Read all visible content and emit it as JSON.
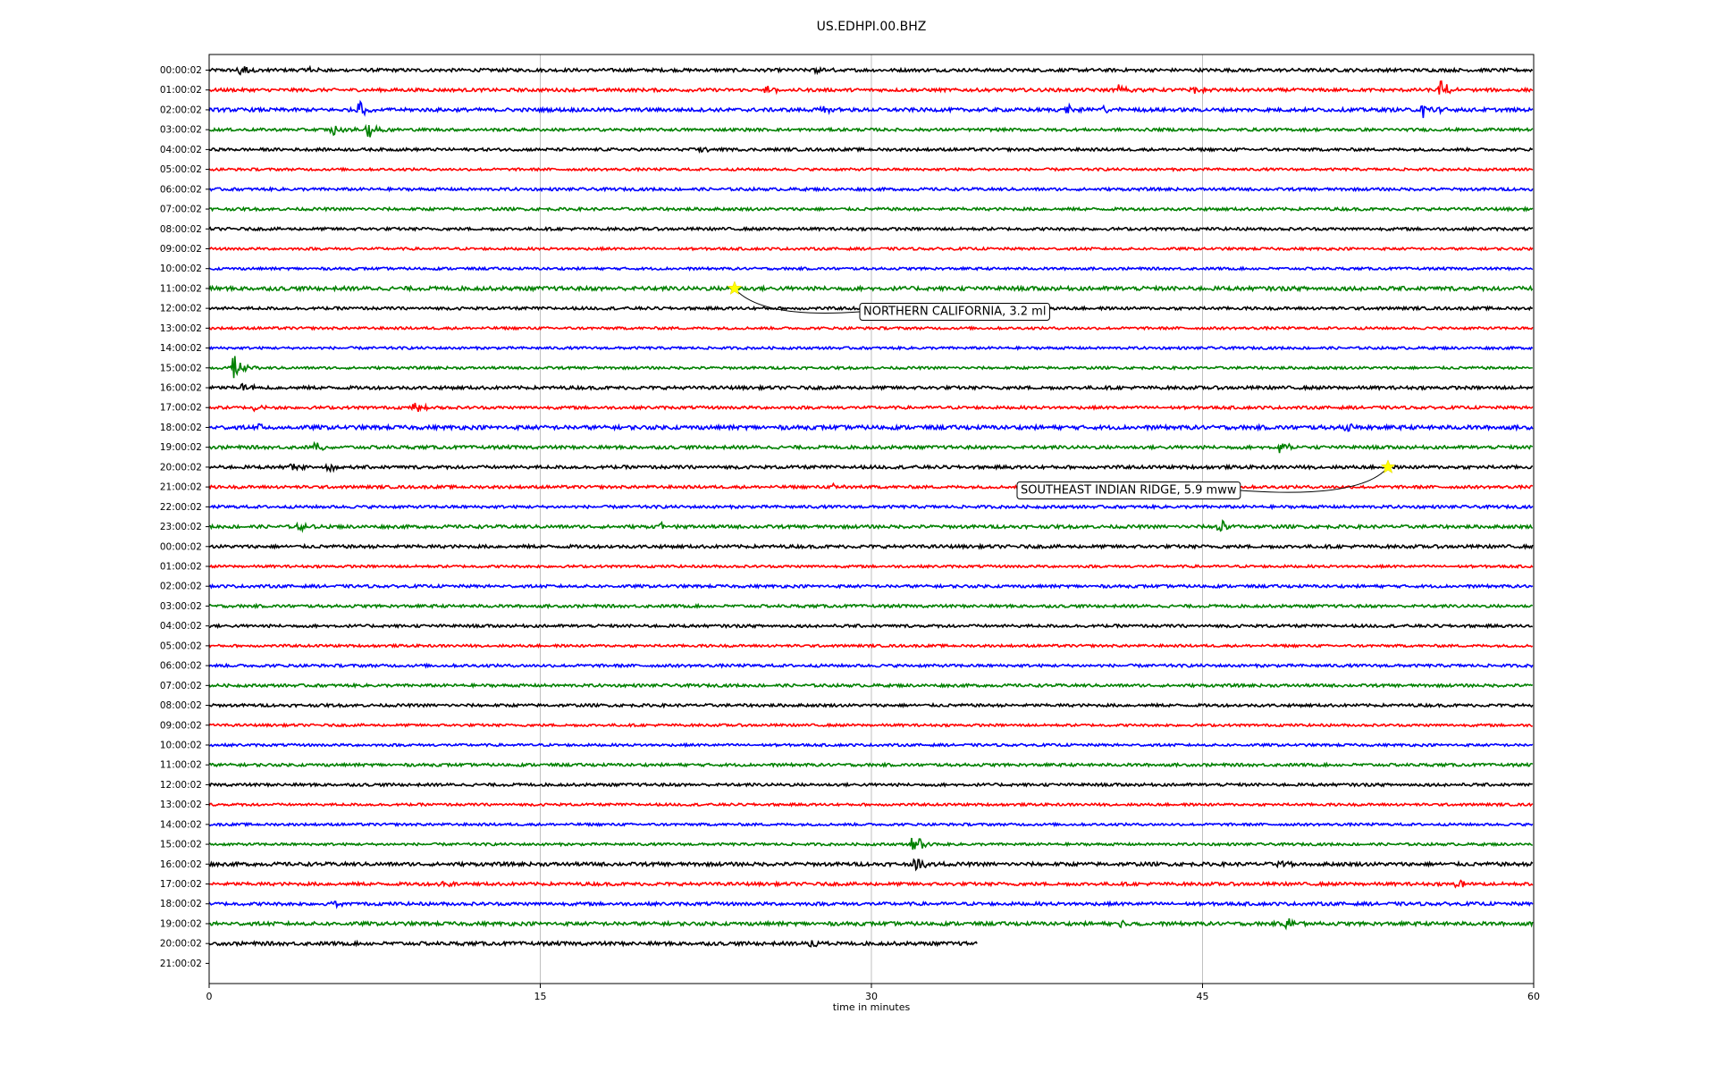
{
  "chart_data": {
    "type": "line",
    "title": "US.EDHPI.00.BHZ",
    "xlabel": "time in minutes",
    "ylabel": "",
    "xlim": [
      0,
      60
    ],
    "x_ticks": [
      "0",
      "15",
      "30",
      "45",
      "60"
    ],
    "x_tick_values": [
      0,
      15,
      30,
      45,
      60
    ],
    "grid_x": true,
    "series_colors": [
      "#000000",
      "#ff0000",
      "#0000ff",
      "#008000"
    ],
    "row_labels": [
      "00:00:02",
      "01:00:02",
      "02:00:02",
      "03:00:02",
      "04:00:02",
      "05:00:02",
      "06:00:02",
      "07:00:02",
      "08:00:02",
      "09:00:02",
      "10:00:02",
      "11:00:02",
      "12:00:02",
      "13:00:02",
      "14:00:02",
      "15:00:02",
      "16:00:02",
      "17:00:02",
      "18:00:02",
      "19:00:02",
      "20:00:02",
      "21:00:02",
      "22:00:02",
      "23:00:02",
      "00:00:02",
      "01:00:02",
      "02:00:02",
      "03:00:02",
      "04:00:02",
      "05:00:02",
      "06:00:02",
      "07:00:02",
      "08:00:02",
      "09:00:02",
      "10:00:02",
      "11:00:02",
      "12:00:02",
      "13:00:02",
      "14:00:02",
      "15:00:02",
      "16:00:02",
      "17:00:02",
      "18:00:02",
      "19:00:02",
      "20:00:02",
      "21:00:02"
    ],
    "trace_end_minutes": [
      60,
      60,
      60,
      60,
      60,
      60,
      60,
      60,
      60,
      60,
      60,
      60,
      60,
      60,
      60,
      60,
      60,
      60,
      60,
      60,
      60,
      60,
      60,
      60,
      60,
      60,
      60,
      60,
      60,
      60,
      60,
      60,
      60,
      60,
      60,
      60,
      60,
      60,
      60,
      60,
      60,
      60,
      60,
      60,
      34.8,
      0
    ],
    "noise_level": [
      0.18,
      0.18,
      0.2,
      0.16,
      0.16,
      0.14,
      0.16,
      0.16,
      0.16,
      0.14,
      0.14,
      0.22,
      0.16,
      0.14,
      0.14,
      0.14,
      0.18,
      0.16,
      0.22,
      0.18,
      0.18,
      0.16,
      0.16,
      0.18,
      0.18,
      0.14,
      0.16,
      0.16,
      0.16,
      0.14,
      0.16,
      0.16,
      0.16,
      0.14,
      0.14,
      0.16,
      0.16,
      0.14,
      0.14,
      0.14,
      0.2,
      0.18,
      0.18,
      0.2,
      0.2,
      0
    ],
    "bursts": [
      {
        "row": 0,
        "minute": 1.4,
        "amplitude": 1.0
      },
      {
        "row": 0,
        "minute": 4.5,
        "amplitude": 0.4
      },
      {
        "row": 0,
        "minute": 27.5,
        "amplitude": 0.4
      },
      {
        "row": 1,
        "minute": 25.2,
        "amplitude": 0.5
      },
      {
        "row": 1,
        "minute": 41.2,
        "amplitude": 0.8
      },
      {
        "row": 1,
        "minute": 44.5,
        "amplitude": 0.6
      },
      {
        "row": 1,
        "minute": 55.8,
        "amplitude": 1.2
      },
      {
        "row": 2,
        "minute": 6.8,
        "amplitude": 1.2
      },
      {
        "row": 2,
        "minute": 27.8,
        "amplitude": 0.5
      },
      {
        "row": 2,
        "minute": 38.8,
        "amplitude": 0.6
      },
      {
        "row": 2,
        "minute": 40.5,
        "amplitude": 0.5
      },
      {
        "row": 2,
        "minute": 55,
        "amplitude": 1.1
      },
      {
        "row": 3,
        "minute": 5.6,
        "amplitude": 0.9
      },
      {
        "row": 3,
        "minute": 7.2,
        "amplitude": 0.9
      },
      {
        "row": 4,
        "minute": 22.3,
        "amplitude": 0.4
      },
      {
        "row": 15,
        "minute": 1.1,
        "amplitude": 1.5
      },
      {
        "row": 16,
        "minute": 1.5,
        "amplitude": 0.6
      },
      {
        "row": 17,
        "minute": 9.3,
        "amplitude": 0.6
      },
      {
        "row": 17,
        "minute": 2,
        "amplitude": 0.4
      },
      {
        "row": 18,
        "minute": 2.3,
        "amplitude": 0.4
      },
      {
        "row": 18,
        "minute": 51.5,
        "amplitude": 0.5
      },
      {
        "row": 19,
        "minute": 4.8,
        "amplitude": 0.5
      },
      {
        "row": 19,
        "minute": 48.5,
        "amplitude": 0.6
      },
      {
        "row": 20,
        "minute": 5.3,
        "amplitude": 0.5
      },
      {
        "row": 20,
        "minute": 3.7,
        "amplitude": 0.4
      },
      {
        "row": 21,
        "minute": 28.3,
        "amplitude": 0.3
      },
      {
        "row": 23,
        "minute": 45.7,
        "amplitude": 1.1
      },
      {
        "row": 23,
        "minute": 20.3,
        "amplitude": 0.6
      },
      {
        "row": 23,
        "minute": 4,
        "amplitude": 0.5
      },
      {
        "row": 39,
        "minute": 31.9,
        "amplitude": 1.3
      },
      {
        "row": 40,
        "minute": 32,
        "amplitude": 0.8
      },
      {
        "row": 40,
        "minute": 48.5,
        "amplitude": 0.6
      },
      {
        "row": 41,
        "minute": 56.5,
        "amplitude": 0.5
      },
      {
        "row": 41,
        "minute": 10.5,
        "amplitude": 0.4
      },
      {
        "row": 42,
        "minute": 5.5,
        "amplitude": 0.4
      },
      {
        "row": 43,
        "minute": 41.2,
        "amplitude": 0.5
      },
      {
        "row": 43,
        "minute": 48.8,
        "amplitude": 0.8
      },
      {
        "row": 44,
        "minute": 27.2,
        "amplitude": 0.5
      }
    ],
    "annotations": [
      {
        "text": "NORTHERN CALIFORNIA, 3.2 ml",
        "row": 11,
        "minute": 23.8
      },
      {
        "text": "SOUTHEAST INDIAN RIDGE, 5.9 mww",
        "row": 20,
        "minute": 53.4
      }
    ]
  }
}
